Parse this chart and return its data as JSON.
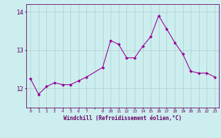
{
  "x": [
    0,
    1,
    2,
    3,
    4,
    5,
    6,
    7,
    9,
    10,
    11,
    12,
    13,
    14,
    15,
    16,
    17,
    18,
    19,
    20,
    21,
    22,
    23
  ],
  "y": [
    12.25,
    11.85,
    12.05,
    12.15,
    12.1,
    12.1,
    12.2,
    12.3,
    12.55,
    13.25,
    13.15,
    12.8,
    12.8,
    13.1,
    13.35,
    13.9,
    13.55,
    13.2,
    12.9,
    12.45,
    12.4,
    12.4,
    12.3
  ],
  "line_color": "#990099",
  "marker_color": "#990099",
  "bg_color": "#cceeee",
  "grid_color": "#aacccc",
  "axis_color": "#660066",
  "xlabel": "Windchill (Refroidissement éolien,°C)",
  "yticks": [
    12,
    13,
    14
  ],
  "ylim": [
    11.5,
    14.2
  ],
  "xlim": [
    -0.5,
    23.5
  ],
  "xtick_labels": [
    "0",
    "1",
    "2",
    "3",
    "4",
    "5",
    "6",
    "7",
    "",
    "9",
    "10",
    "11",
    "12",
    "13",
    "14",
    "15",
    "16",
    "17",
    "18",
    "19",
    "20",
    "21",
    "22",
    "23"
  ]
}
